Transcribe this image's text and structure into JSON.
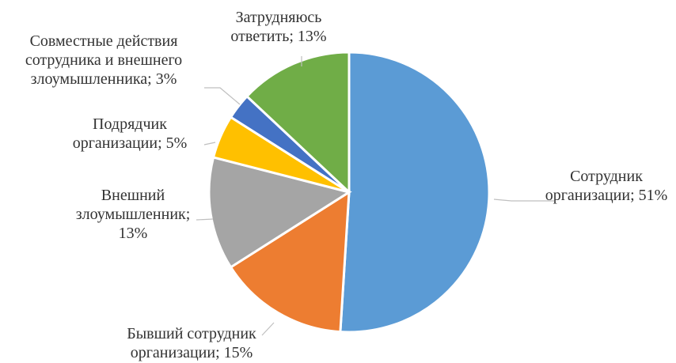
{
  "chart_data": {
    "type": "pie",
    "title": "",
    "slices": [
      {
        "name": "Сотрудник организации",
        "value": 51,
        "label": [
          "Сотрудник",
          "организации; 51%"
        ],
        "color": "#5b9bd5"
      },
      {
        "name": "Бывший сотрудник организации",
        "value": 15,
        "label": [
          "Бывший сотрудник",
          "организации; 15%"
        ],
        "color": "#ed7d31"
      },
      {
        "name": "Внешний злоумышленник",
        "value": 13,
        "label": [
          "Внешний",
          "злоумышленник;",
          "13%"
        ],
        "color": "#a5a5a5"
      },
      {
        "name": "Подрядчик организации",
        "value": 5,
        "label": [
          "Подрядчик",
          "организации; 5%"
        ],
        "color": "#ffc000"
      },
      {
        "name": "Совместные действия сотрудника и внешнего злоумышленника",
        "value": 3,
        "label": [
          "Совместные действия",
          "сотрудника и внешнего",
          "злоумышленника; 3%"
        ],
        "color": "#4472c4"
      },
      {
        "name": "Затрудняюсь ответить",
        "value": 13,
        "label": [
          "Затрудняюсь",
          "ответить; 13%"
        ],
        "color": "#70ad47"
      }
    ]
  }
}
